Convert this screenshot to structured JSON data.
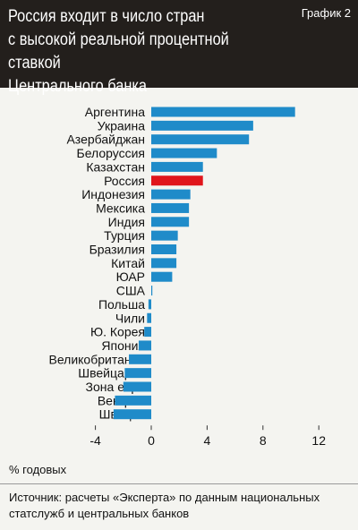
{
  "header": {
    "title": "Россия входит в число стран\nс высокой реальной процентной ставкой\nЦентрального банка",
    "badge": "График 2"
  },
  "unit_label": "% годовых",
  "source": "Источник: расчеты «Эксперта» по данным национальных\nстатслужб и центральных банков",
  "colors": {
    "bar": "#1f8bc9",
    "highlight": "#e0151b",
    "header_bg": "#231f1c",
    "background": "#f4f4f0"
  },
  "chart_data": {
    "type": "bar",
    "orientation": "horizontal",
    "categories": [
      "Аргентина",
      "Украина",
      "Азербайджан",
      "Белоруссия",
      "Казахстан",
      "Россия",
      "Индонезия",
      "Мексика",
      "Индия",
      "Турция",
      "Бразилия",
      "Китай",
      "ЮАР",
      "США",
      "Польша",
      "Чили",
      "Ю. Корея",
      "Япония",
      "Великобритания",
      "Швейцария",
      "Зона евро",
      "Венгрия",
      "Швеция"
    ],
    "values": [
      10.3,
      7.3,
      7.0,
      4.7,
      3.7,
      3.7,
      2.8,
      2.7,
      2.7,
      1.9,
      1.8,
      1.8,
      1.5,
      0.0,
      -0.2,
      -0.3,
      -0.5,
      -0.9,
      -1.6,
      -1.9,
      -2.0,
      -2.6,
      -2.7
    ],
    "highlight": "Россия",
    "xticks": [
      -4,
      0,
      4,
      8,
      12
    ],
    "xlim": [
      -4,
      12
    ],
    "xlabel": "% годовых",
    "grid": false
  }
}
